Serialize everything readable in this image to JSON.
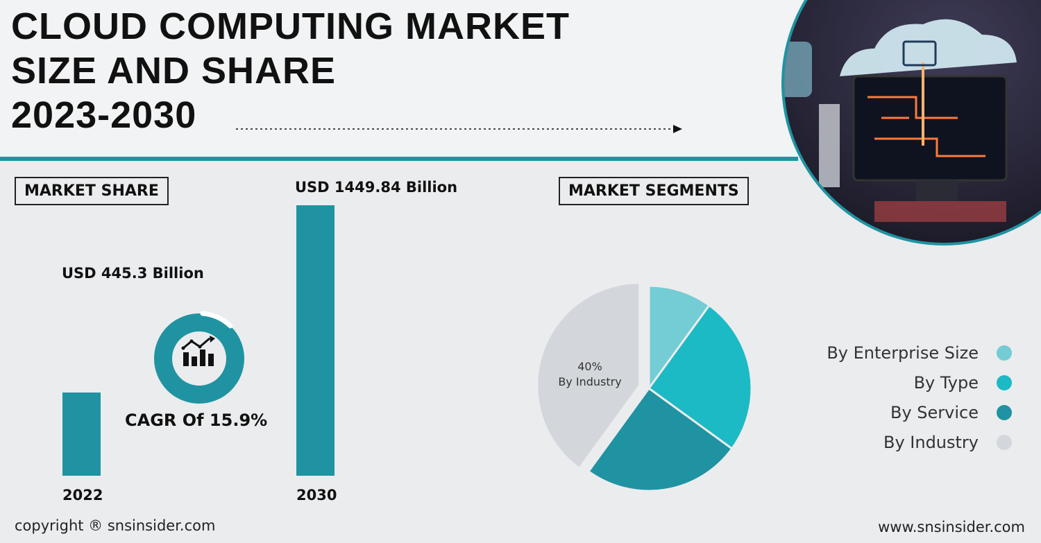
{
  "header": {
    "title_lines": [
      "CLOUD COMPUTING MARKET",
      "SIZE AND SHARE",
      "2023-2030"
    ]
  },
  "market_share": {
    "box_label": "MARKET SHARE",
    "cagr_label": "CAGR Of 15.9%"
  },
  "market_segments": {
    "box_label": "MARKET SEGMENTS",
    "pie_label_percent": "40%",
    "pie_label_name": "By Industry"
  },
  "footer": {
    "copyright": "copyright ® snsinsider.com",
    "website": "www.snsinsider.com"
  },
  "colors": {
    "accent": "#1f93a2",
    "enterprise": "#74ccd4",
    "type": "#1cbac4",
    "service": "#1f93a2",
    "industry": "#d3d7db"
  },
  "chart_data": [
    {
      "type": "bar",
      "categories": [
        "2022",
        "2030"
      ],
      "values": [
        445.3,
        1449.84
      ],
      "data_labels": [
        "USD 445.3 Billion",
        "USD 1449.84 Billion"
      ],
      "title": "MARKET SHARE"
    },
    {
      "type": "pie",
      "title": "MARKET SEGMENTS",
      "labels": [
        "By Enterprise Size",
        "By Type",
        "By Service",
        "By Industry"
      ],
      "values": [
        10,
        25,
        25,
        40
      ],
      "colors": [
        "#74ccd4",
        "#1cbac4",
        "#1f93a2",
        "#d3d7db"
      ],
      "exploded": "By Industry",
      "legend_position": "right"
    }
  ]
}
